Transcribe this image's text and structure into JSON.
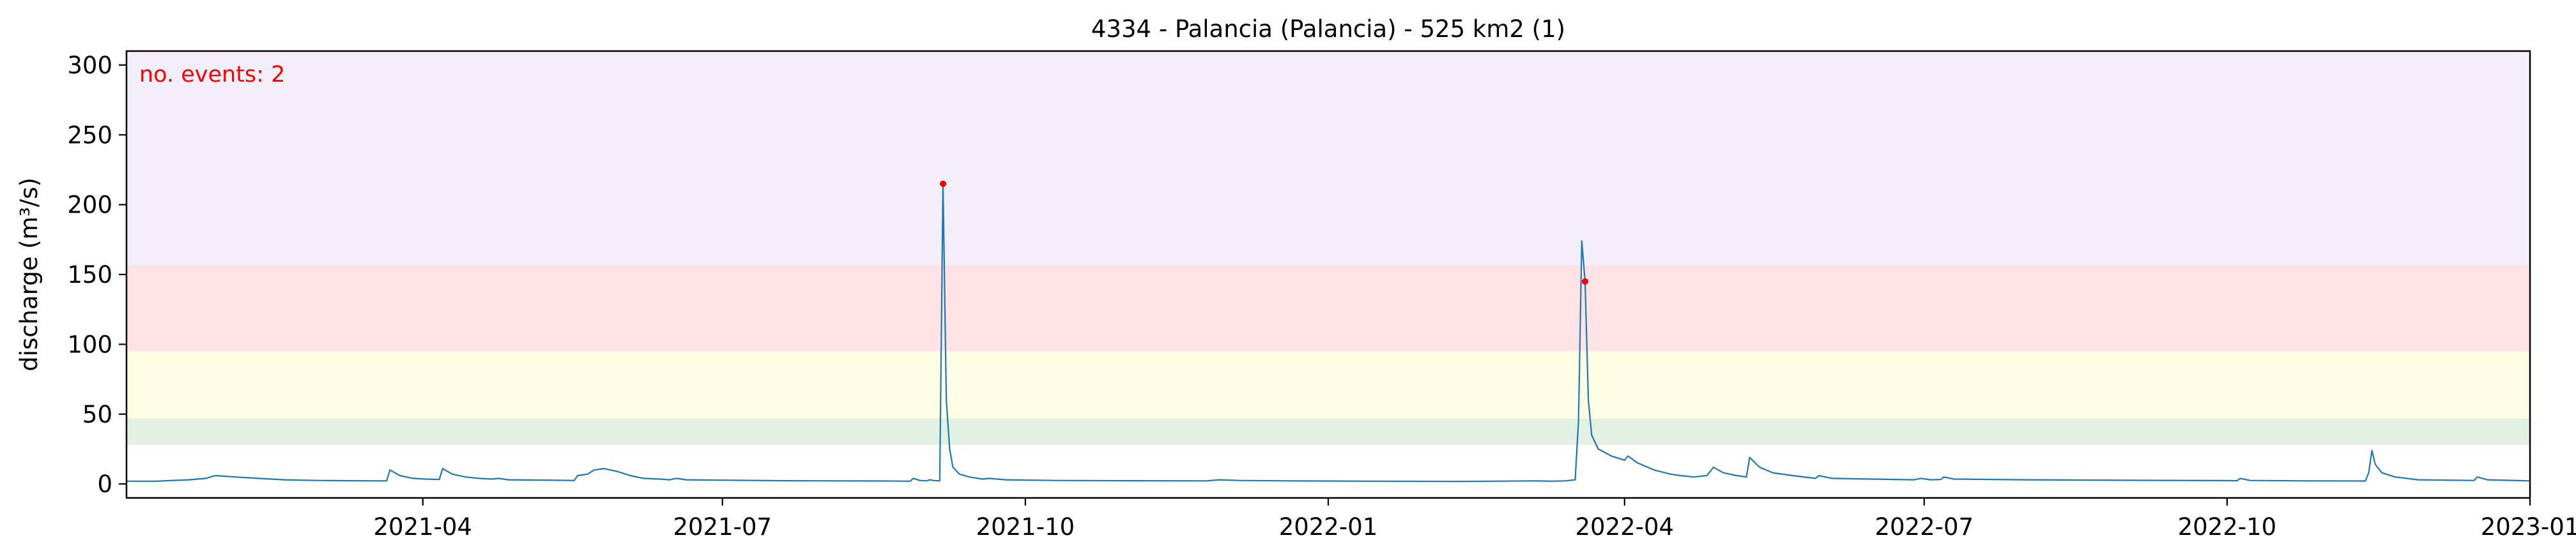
{
  "chart_data": {
    "type": "line",
    "title": "4334 - Palancia (Palancia) - 525 km2 (1)",
    "xlabel": "",
    "ylabel": "discharge (m³/s)",
    "xlim": [
      "2021-01-01",
      "2023-01-01"
    ],
    "ylim": [
      -10,
      310
    ],
    "x_ticks": [
      "2021-04",
      "2021-07",
      "2021-10",
      "2022-01",
      "2022-04",
      "2022-07",
      "2022-10",
      "2023-01"
    ],
    "y_ticks": [
      0,
      50,
      100,
      150,
      200,
      250,
      300
    ],
    "annotation": "no. events: 2",
    "grid": false,
    "threshold_bands": [
      {
        "from": 28,
        "to": 47,
        "color": "#e3f1e3"
      },
      {
        "from": 47,
        "to": 95,
        "color": "#fefee3"
      },
      {
        "from": 95,
        "to": 157,
        "color": "#ffe3e5"
      },
      {
        "from": 157,
        "to": 310,
        "color": "#f2eefa"
      }
    ],
    "series": [
      {
        "color": "#1f77b4",
        "points": [
          [
            "2021-01-01",
            2
          ],
          [
            "2021-01-10",
            2
          ],
          [
            "2021-01-20",
            3
          ],
          [
            "2021-01-25",
            4
          ],
          [
            "2021-01-28",
            6
          ],
          [
            "2021-02-03",
            5
          ],
          [
            "2021-02-10",
            4
          ],
          [
            "2021-02-18",
            3
          ],
          [
            "2021-02-28",
            2.5
          ],
          [
            "2021-03-10",
            2.3
          ],
          [
            "2021-03-21",
            2.2
          ],
          [
            "2021-03-22",
            10
          ],
          [
            "2021-03-25",
            6
          ],
          [
            "2021-03-29",
            4
          ],
          [
            "2021-04-02",
            3.5
          ],
          [
            "2021-04-06",
            3.2
          ],
          [
            "2021-04-07",
            11
          ],
          [
            "2021-04-10",
            7
          ],
          [
            "2021-04-14",
            5
          ],
          [
            "2021-04-18",
            4
          ],
          [
            "2021-04-22",
            3.5
          ],
          [
            "2021-04-24",
            4
          ],
          [
            "2021-04-27",
            3
          ],
          [
            "2021-05-05",
            2.8
          ],
          [
            "2021-05-12",
            2.6
          ],
          [
            "2021-05-17",
            2.5
          ],
          [
            "2021-05-18",
            6
          ],
          [
            "2021-05-21",
            7
          ],
          [
            "2021-05-23",
            10
          ],
          [
            "2021-05-26",
            11
          ],
          [
            "2021-05-30",
            9
          ],
          [
            "2021-06-03",
            6
          ],
          [
            "2021-06-07",
            4
          ],
          [
            "2021-06-12",
            3.5
          ],
          [
            "2021-06-15",
            3
          ],
          [
            "2021-06-17",
            4
          ],
          [
            "2021-06-20",
            3
          ],
          [
            "2021-07-05",
            2.6
          ],
          [
            "2021-07-20",
            2.3
          ],
          [
            "2021-08-05",
            2.2
          ],
          [
            "2021-08-20",
            2.1
          ],
          [
            "2021-08-27",
            2
          ],
          [
            "2021-08-28",
            4
          ],
          [
            "2021-08-30",
            2.5
          ],
          [
            "2021-09-01",
            2.2
          ],
          [
            "2021-09-02",
            3
          ],
          [
            "2021-09-03",
            2.5
          ],
          [
            "2021-09-05",
            2.2
          ],
          [
            "2021-09-06",
            215
          ],
          [
            "2021-09-07",
            60
          ],
          [
            "2021-09-08",
            25
          ],
          [
            "2021-09-09",
            12
          ],
          [
            "2021-09-11",
            7
          ],
          [
            "2021-09-14",
            5
          ],
          [
            "2021-09-18",
            3.5
          ],
          [
            "2021-09-20",
            4
          ],
          [
            "2021-09-25",
            3
          ],
          [
            "2021-10-10",
            2.5
          ],
          [
            "2021-11-01",
            2.3
          ],
          [
            "2021-11-25",
            2.2
          ],
          [
            "2021-11-29",
            3
          ],
          [
            "2021-12-05",
            2.5
          ],
          [
            "2021-12-20",
            2.2
          ],
          [
            "2022-01-15",
            2
          ],
          [
            "2022-02-10",
            1.8
          ],
          [
            "2022-02-20",
            2
          ],
          [
            "2022-03-05",
            2.2
          ],
          [
            "2022-03-10",
            2
          ],
          [
            "2022-03-14",
            2.2
          ],
          [
            "2022-03-17",
            3
          ],
          [
            "2022-03-18",
            45
          ],
          [
            "2022-03-19",
            174
          ],
          [
            "2022-03-20",
            145
          ],
          [
            "2022-03-21",
            60
          ],
          [
            "2022-03-22",
            35
          ],
          [
            "2022-03-24",
            25
          ],
          [
            "2022-03-28",
            20
          ],
          [
            "2022-04-01",
            17
          ],
          [
            "2022-04-02",
            20
          ],
          [
            "2022-04-05",
            15
          ],
          [
            "2022-04-10",
            10
          ],
          [
            "2022-04-15",
            7
          ],
          [
            "2022-04-18",
            6
          ],
          [
            "2022-04-22",
            5
          ],
          [
            "2022-04-26",
            6
          ],
          [
            "2022-04-28",
            12
          ],
          [
            "2022-05-01",
            8
          ],
          [
            "2022-05-05",
            6
          ],
          [
            "2022-05-08",
            5
          ],
          [
            "2022-05-09",
            19
          ],
          [
            "2022-05-12",
            12
          ],
          [
            "2022-05-16",
            8
          ],
          [
            "2022-05-22",
            6
          ],
          [
            "2022-05-29",
            4
          ],
          [
            "2022-05-30",
            6
          ],
          [
            "2022-06-03",
            4
          ],
          [
            "2022-06-15",
            3.5
          ],
          [
            "2022-06-28",
            3
          ],
          [
            "2022-06-30",
            4
          ],
          [
            "2022-07-03",
            3
          ],
          [
            "2022-07-06",
            3.2
          ],
          [
            "2022-07-07",
            5
          ],
          [
            "2022-07-10",
            3.5
          ],
          [
            "2022-08-01",
            3
          ],
          [
            "2022-09-01",
            2.6
          ],
          [
            "2022-10-01",
            2.4
          ],
          [
            "2022-10-04",
            2.3
          ],
          [
            "2022-10-05",
            4
          ],
          [
            "2022-10-08",
            2.5
          ],
          [
            "2022-10-25",
            2.2
          ],
          [
            "2022-11-12",
            2.1
          ],
          [
            "2022-11-13",
            8
          ],
          [
            "2022-11-14",
            24
          ],
          [
            "2022-11-15",
            14
          ],
          [
            "2022-11-17",
            8
          ],
          [
            "2022-11-21",
            5
          ],
          [
            "2022-11-28",
            3
          ],
          [
            "2022-12-10",
            2.6
          ],
          [
            "2022-12-15",
            2.5
          ],
          [
            "2022-12-16",
            5
          ],
          [
            "2022-12-19",
            3
          ],
          [
            "2023-01-01",
            2.2
          ]
        ]
      }
    ],
    "events": [
      {
        "x": "2021-09-06",
        "y": 215,
        "color": "#ff0000"
      },
      {
        "x": "2022-03-20",
        "y": 145,
        "color": "#ff0000"
      }
    ]
  }
}
